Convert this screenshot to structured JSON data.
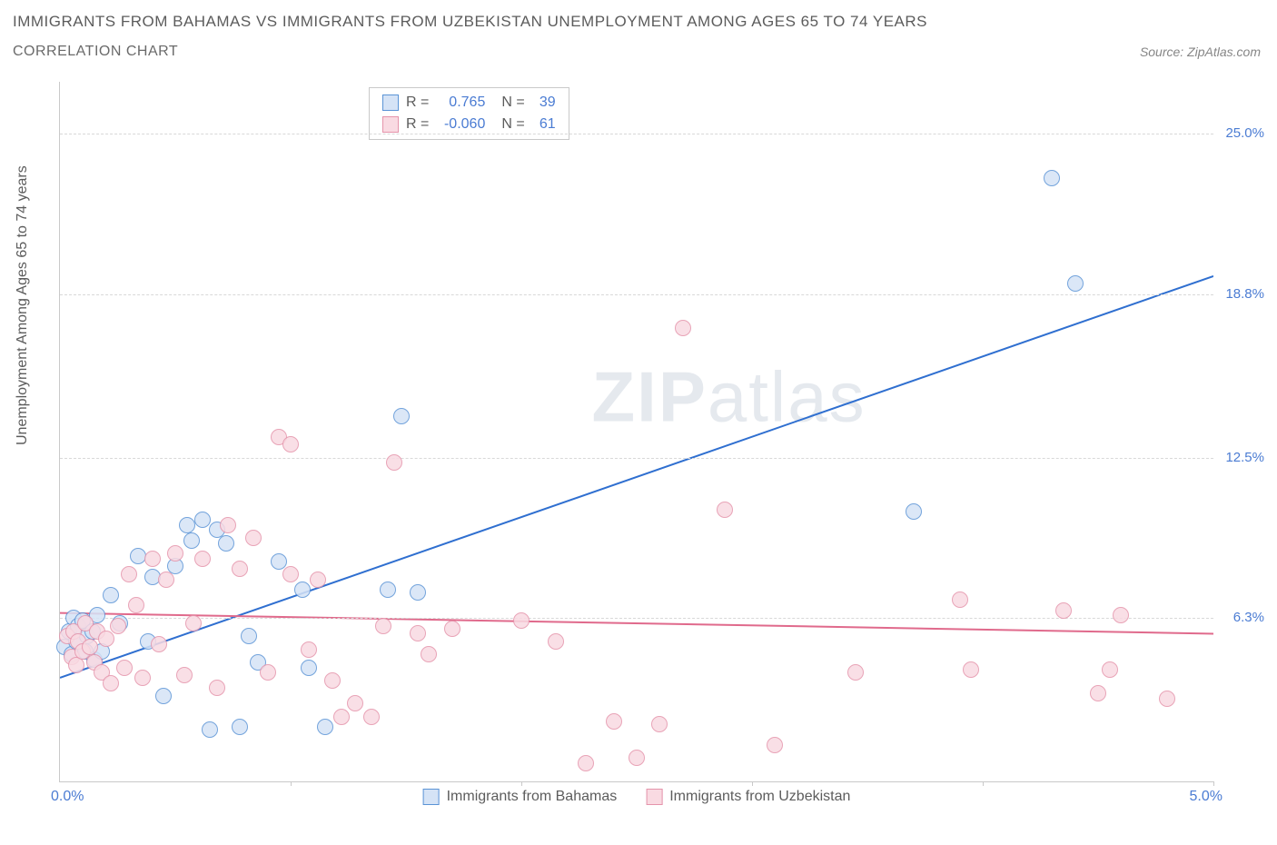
{
  "title": "IMMIGRANTS FROM BAHAMAS VS IMMIGRANTS FROM UZBEKISTAN UNEMPLOYMENT AMONG AGES 65 TO 74 YEARS",
  "subtitle": "CORRELATION CHART",
  "source": "Source: ZipAtlas.com",
  "ylabel": "Unemployment Among Ages 65 to 74 years",
  "watermark_a": "ZIP",
  "watermark_b": "atlas",
  "chart": {
    "type": "scatter",
    "background_color": "#ffffff",
    "grid_color": "#d8d8d8",
    "axis_color": "#c9c9c9",
    "xlim": [
      0.0,
      5.0
    ],
    "ylim": [
      0.0,
      27.0
    ],
    "x_min_label": "0.0%",
    "x_max_label": "5.0%",
    "x_ticks": [
      0.0,
      1.0,
      2.0,
      3.0,
      4.0,
      5.0
    ],
    "y_grid": [
      {
        "v": 6.3,
        "label": "6.3%"
      },
      {
        "v": 12.5,
        "label": "12.5%"
      },
      {
        "v": 18.8,
        "label": "18.8%"
      },
      {
        "v": 25.0,
        "label": "25.0%"
      }
    ],
    "marker_radius": 9,
    "marker_border_width": 1,
    "line_width": 2,
    "series": [
      {
        "name": "Immigrants from Bahamas",
        "fill": "#d5e3f6",
        "stroke": "#5b94d6",
        "line_color": "#2f6fd0",
        "r_label": "R =",
        "r_value": "0.765",
        "n_label": "N =",
        "n_value": "39",
        "regression": {
          "x1": 0.0,
          "y1": 4.0,
          "x2": 5.0,
          "y2": 19.5
        },
        "points": [
          [
            0.02,
            5.2
          ],
          [
            0.04,
            5.8
          ],
          [
            0.05,
            4.9
          ],
          [
            0.06,
            6.3
          ],
          [
            0.07,
            5.4
          ],
          [
            0.08,
            6.0
          ],
          [
            0.1,
            6.2
          ],
          [
            0.11,
            5.0
          ],
          [
            0.12,
            5.6
          ],
          [
            0.14,
            5.8
          ],
          [
            0.15,
            4.7
          ],
          [
            0.16,
            6.4
          ],
          [
            0.18,
            5.0
          ],
          [
            0.22,
            7.2
          ],
          [
            0.26,
            6.1
          ],
          [
            0.34,
            8.7
          ],
          [
            0.38,
            5.4
          ],
          [
            0.4,
            7.9
          ],
          [
            0.45,
            3.3
          ],
          [
            0.5,
            8.3
          ],
          [
            0.55,
            9.9
          ],
          [
            0.57,
            9.3
          ],
          [
            0.62,
            10.1
          ],
          [
            0.65,
            2.0
          ],
          [
            0.68,
            9.7
          ],
          [
            0.72,
            9.2
          ],
          [
            0.78,
            2.1
          ],
          [
            0.82,
            5.6
          ],
          [
            0.86,
            4.6
          ],
          [
            0.95,
            8.5
          ],
          [
            1.05,
            7.4
          ],
          [
            1.08,
            4.4
          ],
          [
            1.15,
            2.1
          ],
          [
            1.42,
            7.4
          ],
          [
            1.48,
            14.1
          ],
          [
            1.55,
            7.3
          ],
          [
            3.7,
            10.4
          ],
          [
            4.3,
            23.3
          ],
          [
            4.4,
            19.2
          ]
        ]
      },
      {
        "name": "Immigrants from Uzbekistan",
        "fill": "#f9dae2",
        "stroke": "#e594ab",
        "line_color": "#e06a8c",
        "r_label": "R =",
        "r_value": "-0.060",
        "n_label": "N =",
        "n_value": "61",
        "regression": {
          "x1": 0.0,
          "y1": 6.5,
          "x2": 5.0,
          "y2": 5.7
        },
        "points": [
          [
            0.03,
            5.6
          ],
          [
            0.05,
            4.8
          ],
          [
            0.06,
            5.8
          ],
          [
            0.07,
            4.5
          ],
          [
            0.08,
            5.4
          ],
          [
            0.1,
            5.0
          ],
          [
            0.11,
            6.1
          ],
          [
            0.13,
            5.2
          ],
          [
            0.15,
            4.6
          ],
          [
            0.16,
            5.8
          ],
          [
            0.18,
            4.2
          ],
          [
            0.2,
            5.5
          ],
          [
            0.22,
            3.8
          ],
          [
            0.25,
            6.0
          ],
          [
            0.28,
            4.4
          ],
          [
            0.3,
            8.0
          ],
          [
            0.33,
            6.8
          ],
          [
            0.36,
            4.0
          ],
          [
            0.4,
            8.6
          ],
          [
            0.43,
            5.3
          ],
          [
            0.46,
            7.8
          ],
          [
            0.5,
            8.8
          ],
          [
            0.54,
            4.1
          ],
          [
            0.58,
            6.1
          ],
          [
            0.62,
            8.6
          ],
          [
            0.68,
            3.6
          ],
          [
            0.73,
            9.9
          ],
          [
            0.78,
            8.2
          ],
          [
            0.84,
            9.4
          ],
          [
            0.9,
            4.2
          ],
          [
            0.95,
            13.3
          ],
          [
            1.0,
            8.0
          ],
          [
            1.0,
            13.0
          ],
          [
            1.08,
            5.1
          ],
          [
            1.12,
            7.8
          ],
          [
            1.18,
            3.9
          ],
          [
            1.22,
            2.5
          ],
          [
            1.28,
            3.0
          ],
          [
            1.35,
            2.5
          ],
          [
            1.4,
            6.0
          ],
          [
            1.45,
            12.3
          ],
          [
            1.55,
            5.7
          ],
          [
            1.6,
            4.9
          ],
          [
            1.7,
            5.9
          ],
          [
            2.0,
            6.2
          ],
          [
            2.15,
            5.4
          ],
          [
            2.28,
            0.7
          ],
          [
            2.4,
            2.3
          ],
          [
            2.5,
            0.9
          ],
          [
            2.6,
            2.2
          ],
          [
            2.7,
            17.5
          ],
          [
            2.88,
            10.5
          ],
          [
            3.1,
            1.4
          ],
          [
            3.45,
            4.2
          ],
          [
            3.9,
            7.0
          ],
          [
            3.95,
            4.3
          ],
          [
            4.35,
            6.6
          ],
          [
            4.5,
            3.4
          ],
          [
            4.6,
            6.4
          ],
          [
            4.55,
            4.3
          ],
          [
            4.8,
            3.2
          ]
        ]
      }
    ]
  }
}
